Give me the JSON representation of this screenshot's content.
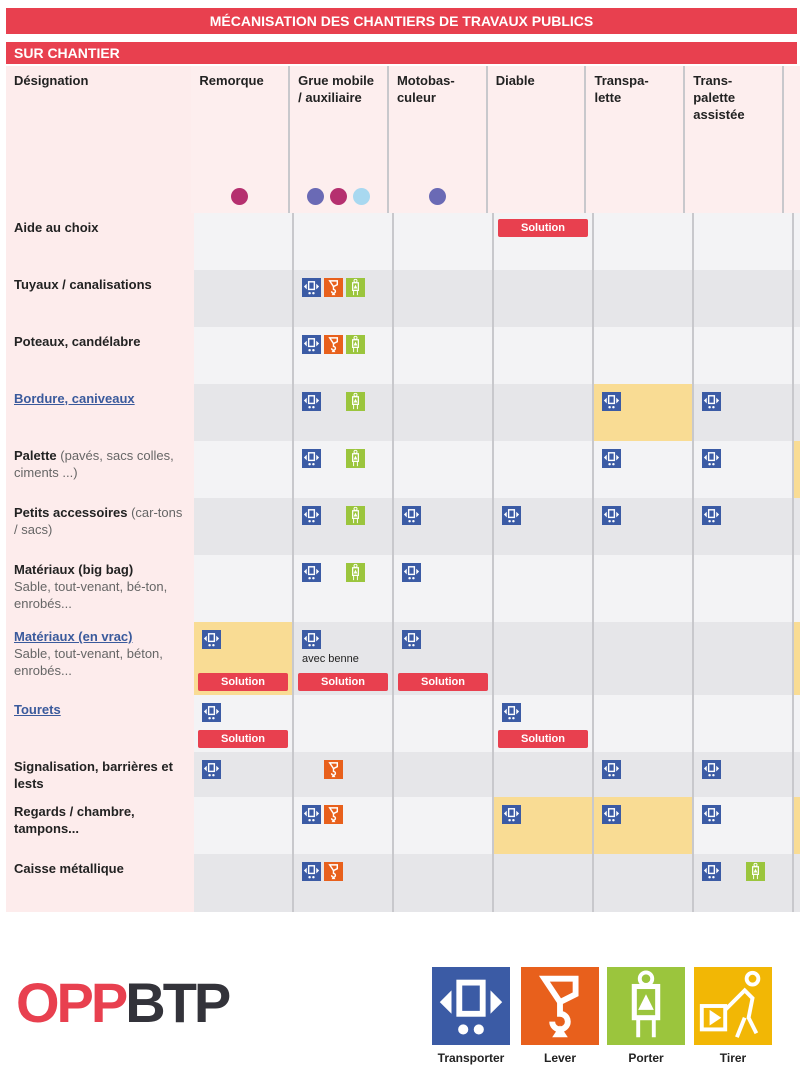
{
  "title": "MÉCANISATION DES CHANTIERS DE TRAVAUX PUBLICS",
  "section": "SUR CHANTIER",
  "colors": {
    "accent": "#e8404f",
    "transporter": "#3b5ba5",
    "lever": "#e8601c",
    "porter": "#9bc53d",
    "tirer": "#f2b705",
    "highlight": "#f9dc94"
  },
  "columns": [
    {
      "label": "Désignation"
    },
    {
      "label": "Remorque",
      "dots": [
        "#b5306f"
      ]
    },
    {
      "label": "Grue mobile / auxiliaire",
      "dots": [
        "#6a6ab5",
        "#b5306f",
        "#a8d8f0"
      ]
    },
    {
      "label": "Motobas-culeur",
      "dots": [
        "#6a6ab5"
      ]
    },
    {
      "label": "Diable"
    },
    {
      "label": "Transpa-lette"
    },
    {
      "label": "Trans-palette assistée"
    }
  ],
  "rows": [
    {
      "label": "Aide au choix",
      "h": 57,
      "cells": [
        {},
        {},
        {},
        {
          "solution": "Solution",
          "top": true
        },
        {},
        {}
      ]
    },
    {
      "label": "Tuyaux / canalisations",
      "h": 57,
      "cells": [
        {},
        {
          "icons": [
            "transporter",
            "lever",
            "porter"
          ]
        },
        {},
        {},
        {},
        {}
      ]
    },
    {
      "label": "Poteaux, candélabre",
      "h": 57,
      "cells": [
        {},
        {
          "icons": [
            "transporter",
            "lever",
            "porter"
          ]
        },
        {},
        {},
        {},
        {}
      ]
    },
    {
      "label": "Bordure, caniveaux",
      "link": true,
      "h": 57,
      "cells": [
        {},
        {
          "icons": [
            "transporter",
            null,
            "porter"
          ]
        },
        {},
        {},
        {
          "icons": [
            "transporter"
          ],
          "hl": true
        },
        {
          "icons": [
            "transporter"
          ]
        }
      ]
    },
    {
      "label": "Palette",
      "sub": "(pavés, sacs colles, ciments ...)",
      "h": 57,
      "side": true,
      "cells": [
        {},
        {
          "icons": [
            "transporter",
            null,
            "porter"
          ]
        },
        {},
        {},
        {
          "icons": [
            "transporter"
          ]
        },
        {
          "icons": [
            "transporter"
          ]
        }
      ]
    },
    {
      "label": "Petits accessoires",
      "sub": "(car-tons / sacs)",
      "h": 57,
      "cells": [
        {},
        {
          "icons": [
            "transporter",
            null,
            "porter"
          ]
        },
        {
          "icons": [
            "transporter"
          ]
        },
        {
          "icons": [
            "transporter"
          ]
        },
        {
          "icons": [
            "transporter"
          ]
        },
        {
          "icons": [
            "transporter"
          ]
        }
      ]
    },
    {
      "label": "Matériaux (big bag)",
      "sub": "Sable, tout-venant, bé-ton, enrobés...",
      "block": true,
      "h": 67,
      "cells": [
        {},
        {
          "icons": [
            "transporter",
            null,
            "porter"
          ]
        },
        {
          "icons": [
            "transporter"
          ]
        },
        {},
        {},
        {}
      ]
    },
    {
      "label": "Matériaux (en vrac)",
      "link": true,
      "sub": "Sable, tout-venant, béton, enrobés...",
      "block": true,
      "h": 73,
      "side": true,
      "cells": [
        {
          "icons": [
            "transporter"
          ],
          "hl": true,
          "solution": "Solution"
        },
        {
          "icons": [
            "transporter"
          ],
          "note": "avec benne",
          "solution": "Solution"
        },
        {
          "icons": [
            "transporter"
          ],
          "solution": "Solution"
        },
        {},
        {},
        {}
      ]
    },
    {
      "label": "Tourets",
      "link": true,
      "h": 57,
      "cells": [
        {
          "icons": [
            "transporter"
          ],
          "solution": "Solution"
        },
        {},
        {},
        {
          "icons": [
            "transporter"
          ],
          "solution": "Solution"
        },
        {},
        {}
      ]
    },
    {
      "label": "Signalisation, barrières et lests",
      "h": 45,
      "cells": [
        {
          "icons": [
            "transporter"
          ]
        },
        {
          "icons": [
            null,
            "lever"
          ]
        },
        {},
        {},
        {
          "icons": [
            "transporter"
          ]
        },
        {
          "icons": [
            "transporter"
          ]
        }
      ]
    },
    {
      "label": "Regards / chambre, tampons...",
      "h": 57,
      "side": true,
      "cells": [
        {},
        {
          "icons": [
            "transporter",
            "lever"
          ]
        },
        {},
        {
          "icons": [
            "transporter"
          ],
          "hl": true
        },
        {
          "icons": [
            "transporter"
          ],
          "hl": true
        },
        {
          "icons": [
            "transporter"
          ]
        }
      ]
    },
    {
      "label": "Caisse métallique",
      "h": 58,
      "cells": [
        {},
        {
          "icons": [
            "transporter",
            "lever"
          ]
        },
        {},
        {},
        {},
        {
          "icons": [
            "transporter",
            null,
            "porter"
          ]
        }
      ]
    }
  ],
  "logo": {
    "part1": "OPP",
    "part2": "BTP"
  },
  "legend": [
    {
      "key": "transporter",
      "label": "Transporter"
    },
    {
      "key": "lever",
      "label": "Lever"
    },
    {
      "key": "porter",
      "label": "Porter"
    },
    {
      "key": "tirer",
      "label": "Tirer"
    }
  ]
}
